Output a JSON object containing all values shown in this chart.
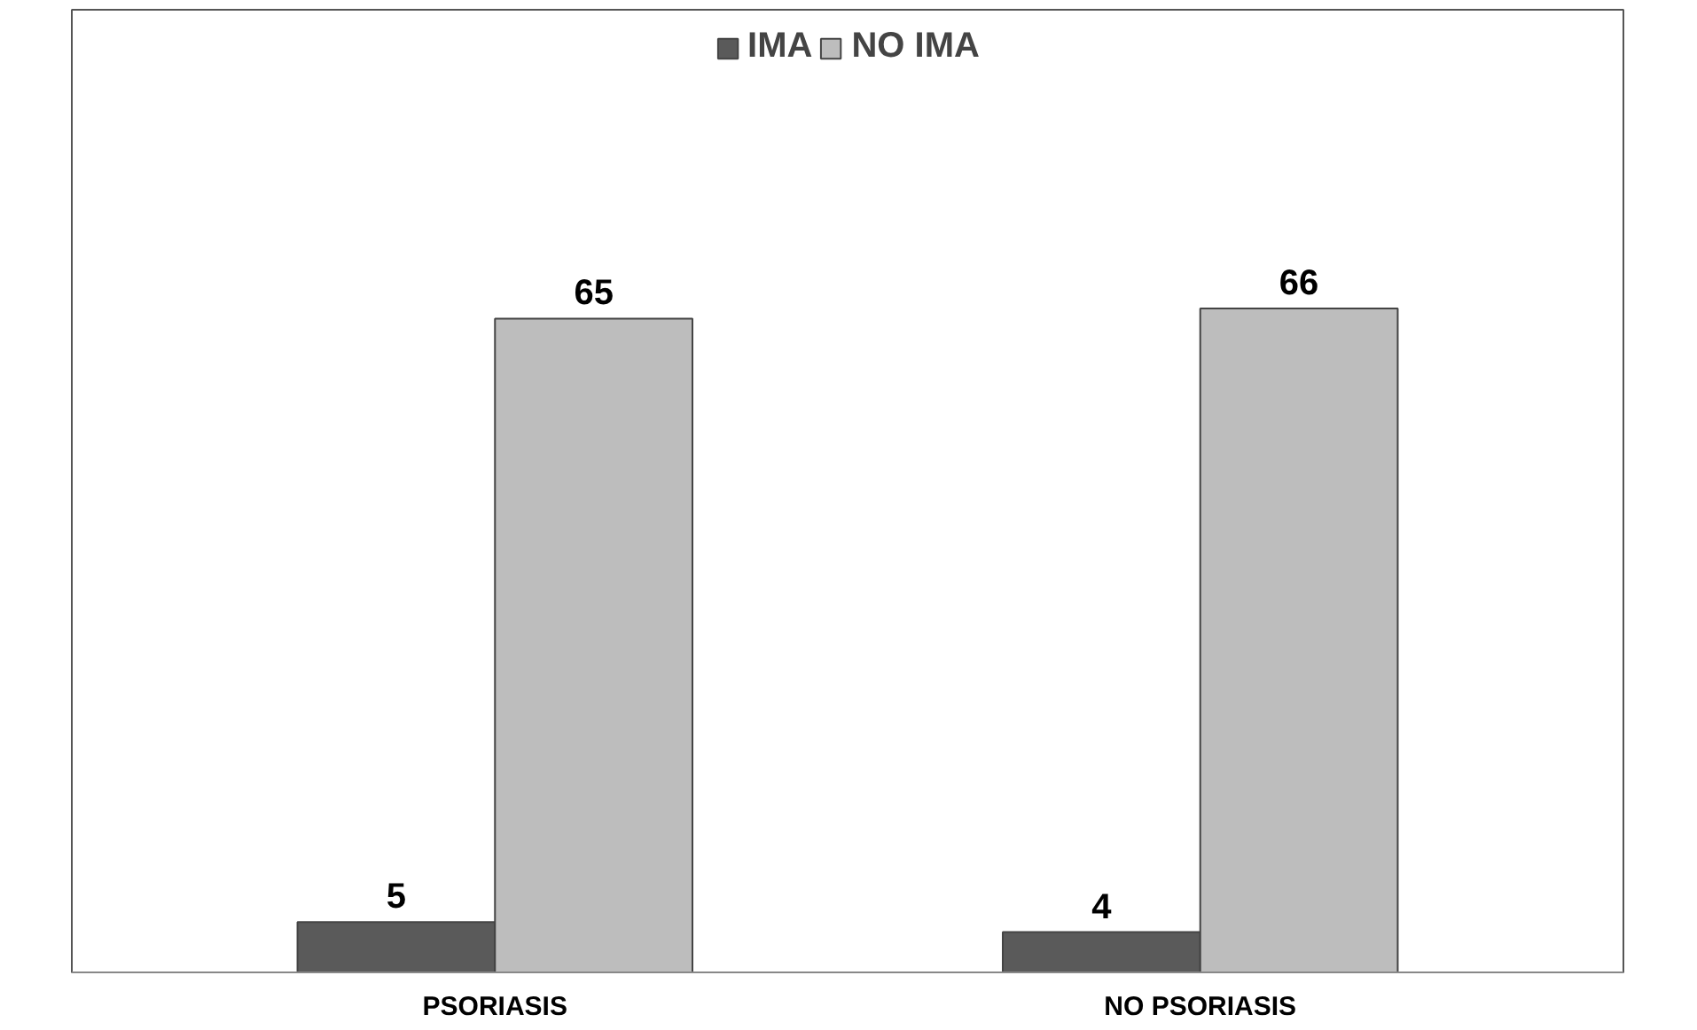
{
  "chart_data": {
    "type": "bar",
    "categories": [
      "PSORIASIS",
      "NO PSORIASIS"
    ],
    "series": [
      {
        "name": "IMA",
        "color": "#5a5a5a",
        "values": [
          5,
          4
        ]
      },
      {
        "name": "NO IMA",
        "color": "#bdbdbd",
        "values": [
          65,
          66
        ]
      }
    ],
    "data_labels": true,
    "legend": "top",
    "grid": false
  }
}
